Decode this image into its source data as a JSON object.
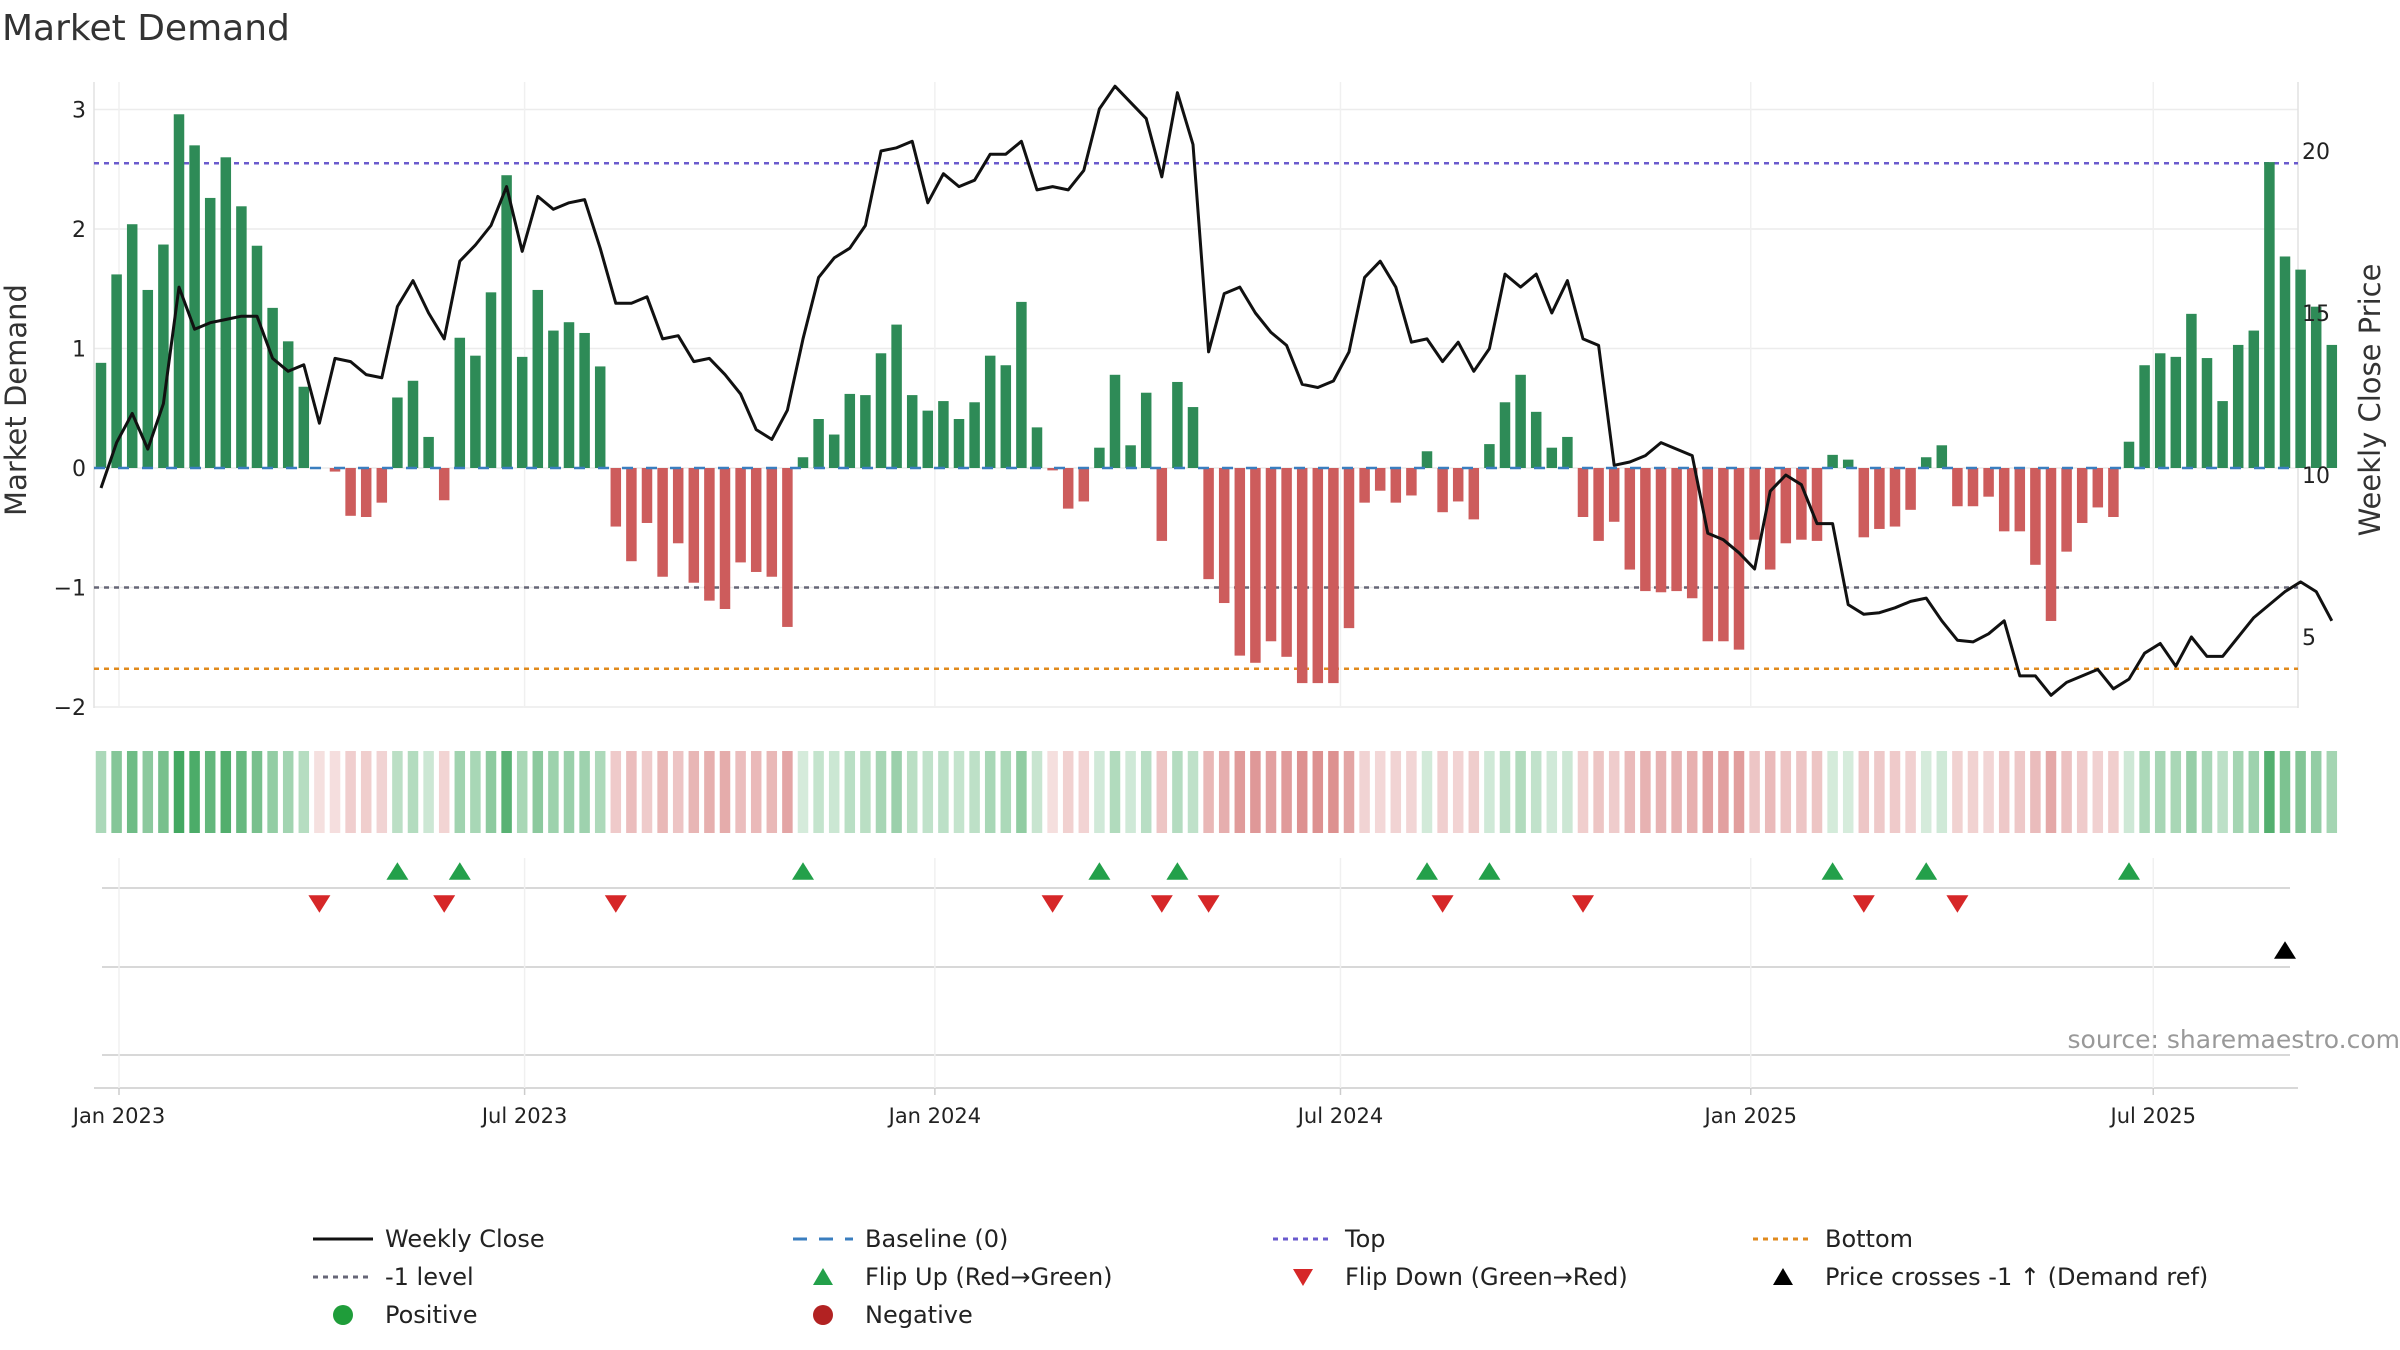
{
  "chart_data": {
    "type": "bar",
    "title": "Market Demand",
    "ylabel_left": "Market Demand",
    "ylabel_right": "Weekly Close Price",
    "source": "source: sharemaestro.com",
    "ylim_left": [
      -2.2,
      3.2
    ],
    "ylim_right": [
      2.7,
      22.3
    ],
    "yticks_left": [
      {
        "value": 3,
        "label": "3"
      },
      {
        "value": 2,
        "label": "2"
      },
      {
        "value": 1,
        "label": "1"
      },
      {
        "value": 0,
        "label": "0"
      },
      {
        "value": -1,
        "label": "−1"
      },
      {
        "value": -2,
        "label": "−2"
      }
    ],
    "yticks_right": [
      {
        "value": 20,
        "label": "20"
      },
      {
        "value": 15,
        "label": "15"
      },
      {
        "value": 10,
        "label": "10"
      },
      {
        "value": 5,
        "label": "5"
      }
    ],
    "x_ticks": [
      {
        "week": 0,
        "label": "Jan 2023"
      },
      {
        "week": 26,
        "label": "Jul 2023"
      },
      {
        "week": 52.3,
        "label": "Jan 2024"
      },
      {
        "week": 78.3,
        "label": "Jul 2024"
      },
      {
        "week": 104.6,
        "label": "Jan 2025"
      },
      {
        "week": 130.4,
        "label": "Jul 2025"
      }
    ],
    "reference_lines": {
      "top": 2.55,
      "bottom": -1.68,
      "minus_one": -1.0,
      "baseline": 0
    },
    "demand": [
      0.88,
      1.62,
      2.04,
      1.49,
      1.87,
      2.96,
      2.7,
      2.26,
      2.6,
      2.19,
      1.86,
      1.34,
      1.06,
      0.68,
      0,
      -0.03,
      -0.4,
      -0.41,
      -0.29,
      0.59,
      0.73,
      0.26,
      -0.27,
      1.09,
      0.94,
      1.47,
      2.45,
      0.93,
      1.49,
      1.15,
      1.22,
      1.13,
      0.85,
      -0.49,
      -0.78,
      -0.46,
      -0.91,
      -0.63,
      -0.96,
      -1.11,
      -1.18,
      -0.79,
      -0.87,
      -0.91,
      -1.33,
      0.09,
      0.41,
      0.28,
      0.62,
      0.61,
      0.96,
      1.2,
      0.61,
      0.48,
      0.56,
      0.41,
      0.55,
      0.94,
      0.86,
      1.39,
      0.34,
      -0.02,
      -0.34,
      -0.28,
      0.17,
      0.78,
      0.19,
      0.63,
      -0.61,
      0.72,
      0.51,
      -0.93,
      -1.13,
      -1.57,
      -1.63,
      -1.45,
      -1.58,
      -1.8,
      -1.8,
      -1.8,
      -1.34,
      -0.29,
      -0.19,
      -0.29,
      -0.23,
      0.14,
      -0.37,
      -0.28,
      -0.43,
      0.2,
      0.55,
      0.78,
      0.47,
      0.17,
      0.26,
      -0.41,
      -0.61,
      -0.45,
      -0.85,
      -1.03,
      -1.04,
      -1.03,
      -1.09,
      -1.45,
      -1.45,
      -1.52,
      -0.6,
      -0.85,
      -0.63,
      -0.6,
      -0.61,
      0.11,
      0.07,
      -0.58,
      -0.51,
      -0.49,
      -0.35,
      0.09,
      0.19,
      -0.32,
      -0.32,
      -0.24,
      -0.53,
      -0.53,
      -0.81,
      -1.28,
      -0.7,
      -0.46,
      -0.33,
      -0.41,
      0.22,
      0.86,
      0.96,
      0.93,
      1.29,
      0.92,
      0.56,
      1.03,
      1.15,
      2.56,
      1.77,
      1.66,
      1.35,
      1.03
    ],
    "weekly_close": [
      9.6,
      11.0,
      11.9,
      10.8,
      12.2,
      15.8,
      14.5,
      14.7,
      14.8,
      14.9,
      14.9,
      13.6,
      13.2,
      13.4,
      11.6,
      13.6,
      13.5,
      13.1,
      13.0,
      15.2,
      16.0,
      15.0,
      14.2,
      16.6,
      17.1,
      17.7,
      18.9,
      16.9,
      18.6,
      18.2,
      18.4,
      18.5,
      17.0,
      15.3,
      15.3,
      15.5,
      14.2,
      14.3,
      13.5,
      13.6,
      13.1,
      12.5,
      11.4,
      11.1,
      12.0,
      14.2,
      16.1,
      16.7,
      17.0,
      17.7,
      20.0,
      20.1,
      20.3,
      18.4,
      19.3,
      18.9,
      19.1,
      19.9,
      19.9,
      20.3,
      18.8,
      18.9,
      18.8,
      19.4,
      21.3,
      22.0,
      21.5,
      21.0,
      19.2,
      21.8,
      20.2,
      13.8,
      15.6,
      15.8,
      15.0,
      14.4,
      14.0,
      12.8,
      12.7,
      12.9,
      13.8,
      16.1,
      16.6,
      15.8,
      14.1,
      14.2,
      13.5,
      14.1,
      13.2,
      13.9,
      16.2,
      15.8,
      16.2,
      15.0,
      16.0,
      14.2,
      14.0,
      10.3,
      10.4,
      10.6,
      11.0,
      10.8,
      10.6,
      8.2,
      8.0,
      7.6,
      7.1,
      9.5,
      10.0,
      9.7,
      8.5,
      8.5,
      6.0,
      5.7,
      5.75,
      5.9,
      6.1,
      6.2,
      5.5,
      4.9,
      4.85,
      5.1,
      5.5,
      3.8,
      3.8,
      3.2,
      3.6,
      3.8,
      4.0,
      3.4,
      3.7,
      4.5,
      4.8,
      4.1,
      5.0,
      4.4,
      4.4,
      5.0,
      5.6,
      6.0,
      6.4,
      6.7,
      6.4,
      5.5
    ],
    "flip_up_weeks": [
      19,
      23,
      45,
      64,
      69,
      85,
      89,
      111,
      117,
      130
    ],
    "flip_down_weeks": [
      14,
      22,
      33,
      61,
      68,
      71,
      86,
      95,
      113,
      119
    ],
    "cross_up_weeks": [
      140
    ],
    "legend": [
      {
        "key": "weekly_close",
        "label": "Weekly Close"
      },
      {
        "key": "baseline",
        "label": "Baseline (0)"
      },
      {
        "key": "top",
        "label": "Top"
      },
      {
        "key": "bottom",
        "label": "Bottom"
      },
      {
        "key": "minus_one",
        "label": "-1 level"
      },
      {
        "key": "flip_up",
        "label": "Flip Up (Red→Green)"
      },
      {
        "key": "flip_down",
        "label": "Flip Down (Green→Red)"
      },
      {
        "key": "cross_up",
        "label": "Price crosses -1 ↑ (Demand ref)"
      },
      {
        "key": "positive",
        "label": "Positive"
      },
      {
        "key": "negative",
        "label": "Negative"
      }
    ],
    "colors": {
      "positive_bar": "#2e8b57",
      "negative_bar": "#cd5c5c",
      "close_line": "#111111",
      "baseline": "#3a7ebf",
      "top": "#6a5acd",
      "bottom": "#e08a1e",
      "minus_one": "#666677",
      "flip_up": "#23a04a",
      "flip_down": "#d62728",
      "cross_up": "#000000",
      "positive_dot": "#1f9d3a",
      "negative_dot": "#b22222"
    }
  }
}
